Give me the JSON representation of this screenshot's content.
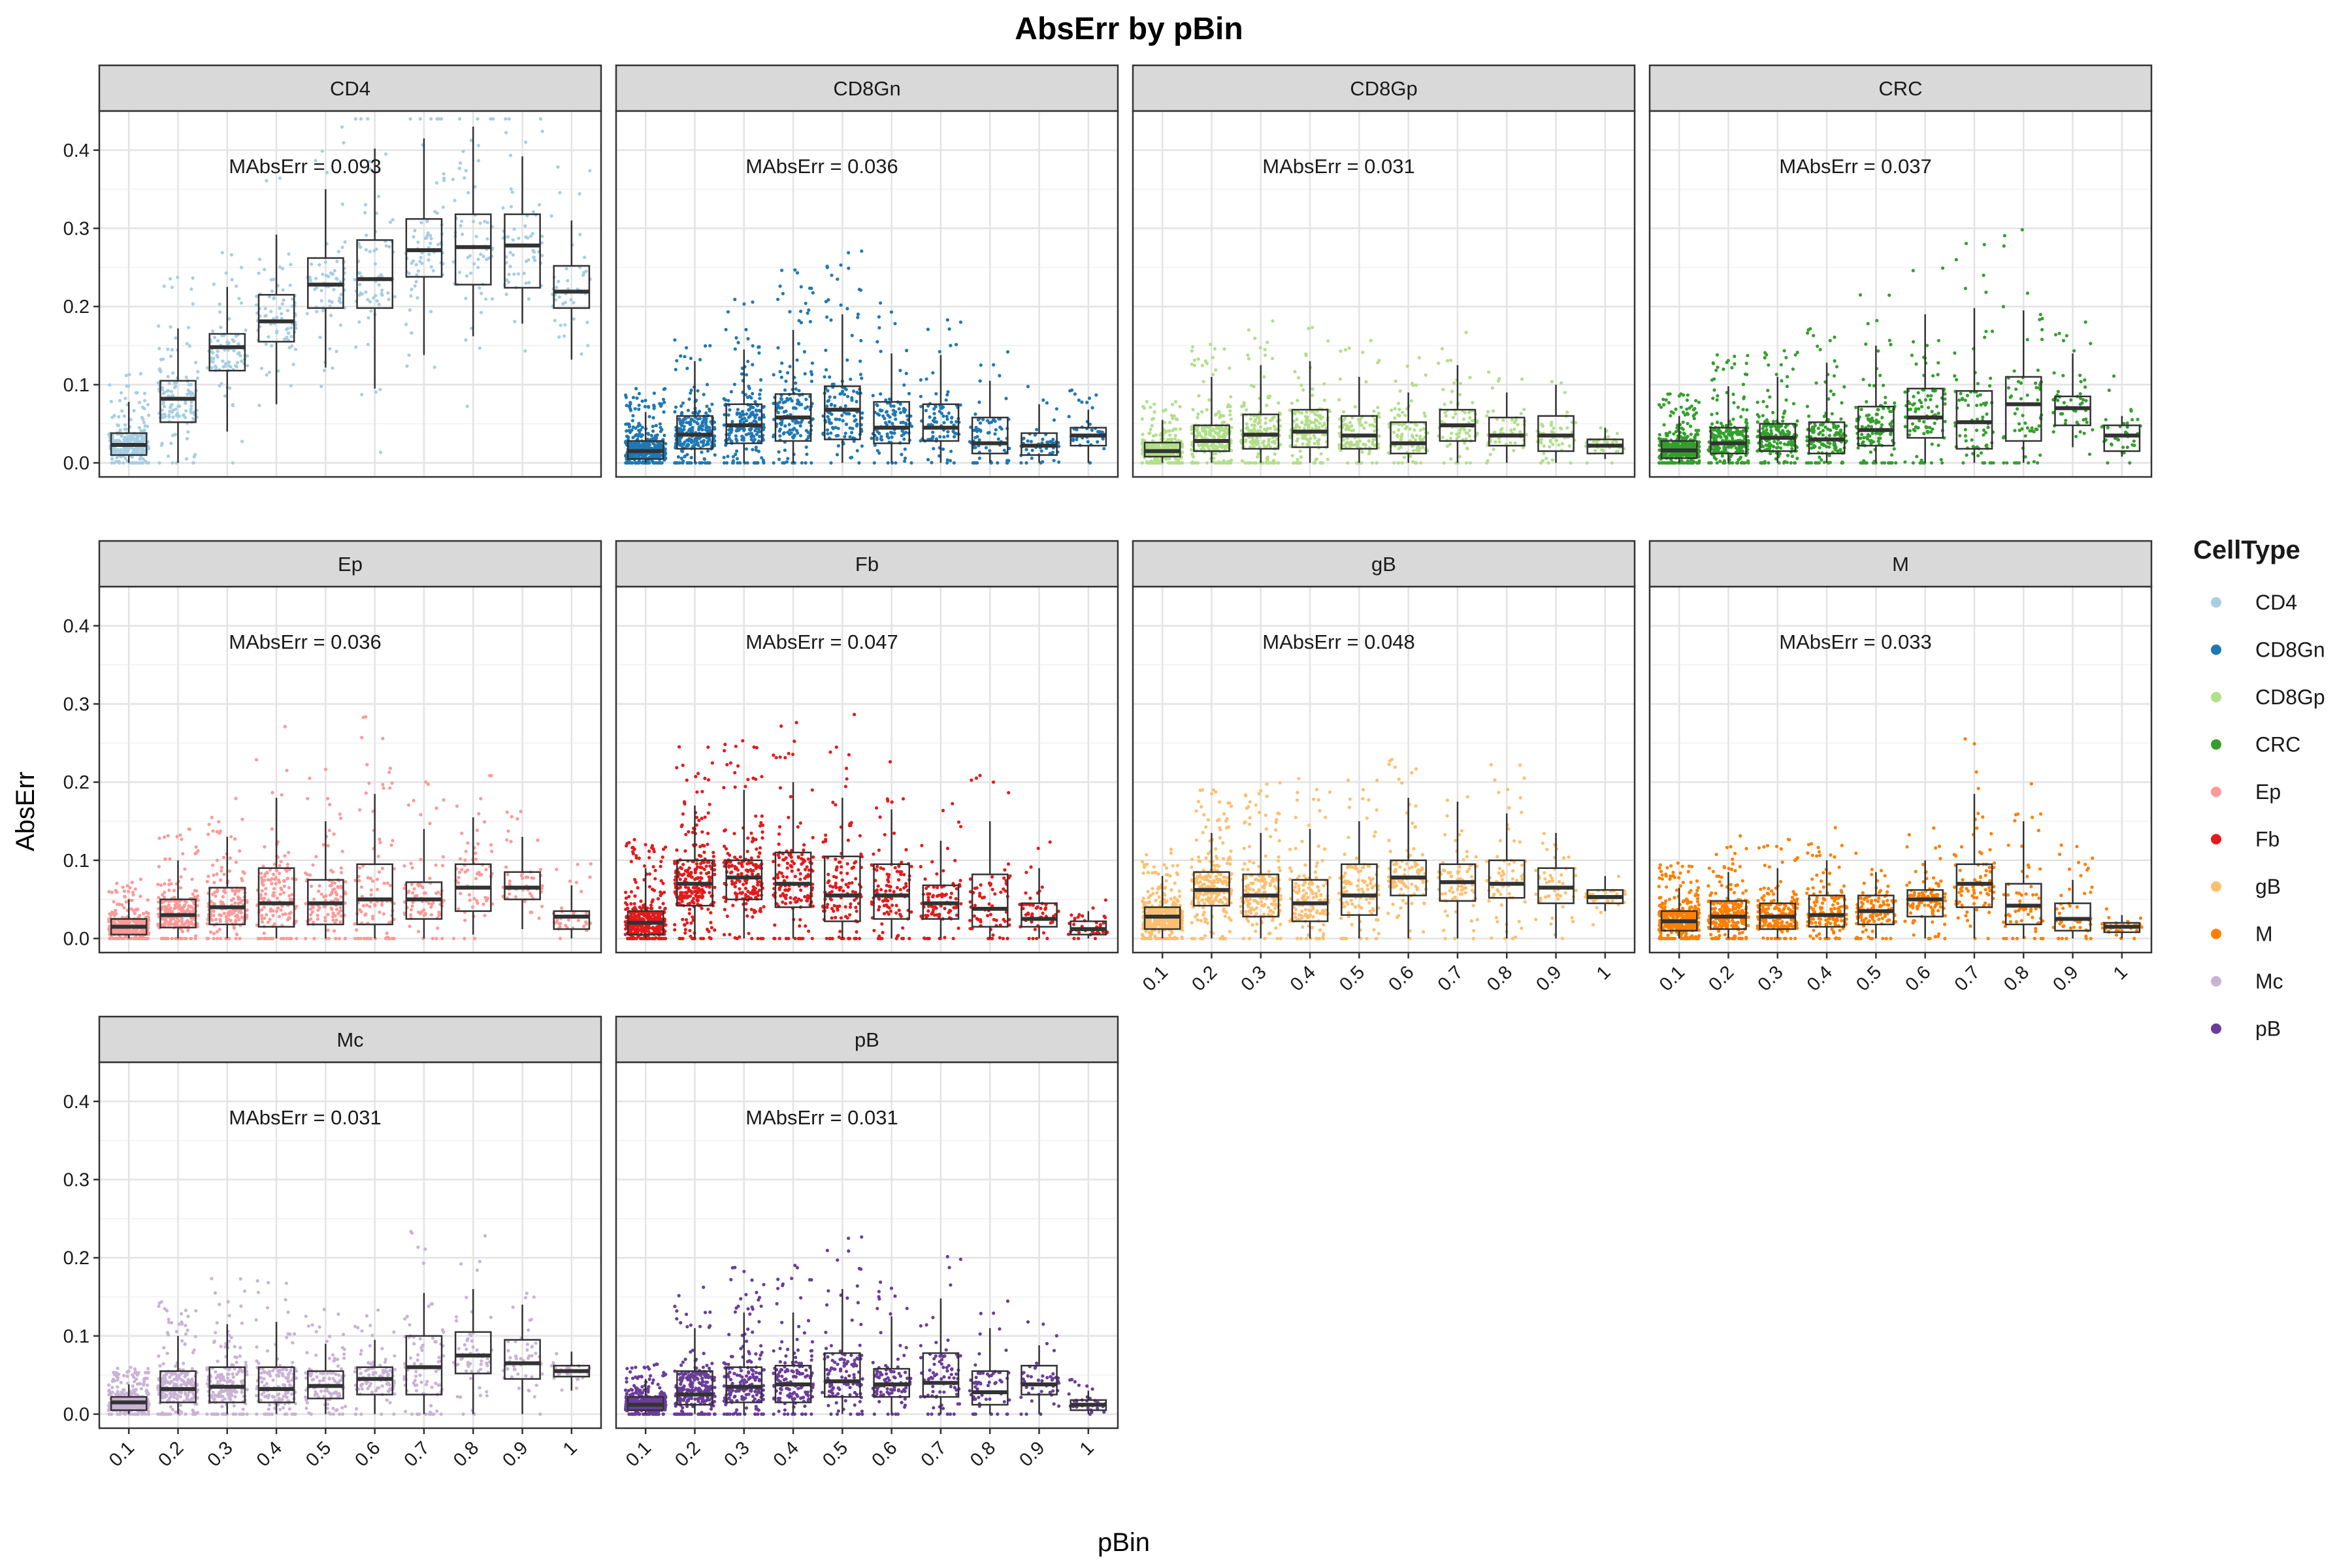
{
  "chart_data": {
    "type": "boxplot-jitter-facets",
    "title": "AbsErr by pBin",
    "xlabel": "pBin",
    "ylabel": "AbsErr",
    "x_categories": [
      "0.1",
      "0.2",
      "0.3",
      "0.4",
      "0.5",
      "0.6",
      "0.7",
      "0.8",
      "0.9",
      "1"
    ],
    "y_ticks": [
      0.0,
      0.1,
      0.2,
      0.3,
      0.4
    ],
    "y_tick_labels": [
      "0.0",
      "0.1",
      "0.2",
      "0.3",
      "0.4"
    ],
    "ylim": [
      -0.018,
      0.45
    ],
    "grid": true,
    "legend": {
      "title": "CellType",
      "placement": "right"
    },
    "facets": [
      {
        "name": "CD4",
        "color": "#a6cee3",
        "annotation": "MAbsErr = 0.093",
        "medians": [
          0.023,
          0.082,
          0.148,
          0.181,
          0.228,
          0.235,
          0.272,
          0.276,
          0.278,
          0.219
        ],
        "q1": [
          0.01,
          0.052,
          0.118,
          0.155,
          0.198,
          0.198,
          0.238,
          0.228,
          0.224,
          0.198
        ],
        "q3": [
          0.038,
          0.105,
          0.165,
          0.215,
          0.262,
          0.285,
          0.312,
          0.318,
          0.318,
          0.252
        ],
        "whisker_low": [
          0.0,
          0.0,
          0.04,
          0.075,
          0.122,
          0.095,
          0.138,
          0.162,
          0.178,
          0.132
        ],
        "whisker_high": [
          0.078,
          0.172,
          0.225,
          0.292,
          0.35,
          0.402,
          0.415,
          0.43,
          0.392,
          0.31
        ],
        "n_points": [
          260,
          130,
          90,
          80,
          70,
          70,
          70,
          65,
          60,
          45
        ]
      },
      {
        "name": "CD8Gn",
        "color": "#1f78b4",
        "annotation": "MAbsErr = 0.036",
        "medians": [
          0.015,
          0.036,
          0.048,
          0.058,
          0.068,
          0.045,
          0.045,
          0.025,
          0.022,
          0.035
        ],
        "q1": [
          0.005,
          0.018,
          0.025,
          0.028,
          0.03,
          0.025,
          0.028,
          0.012,
          0.01,
          0.022
        ],
        "q3": [
          0.028,
          0.06,
          0.075,
          0.088,
          0.098,
          0.078,
          0.075,
          0.058,
          0.038,
          0.045
        ],
        "whisker_low": [
          0.0,
          0.0,
          0.0,
          0.0,
          0.0,
          0.0,
          0.0,
          0.0,
          0.0,
          0.0
        ],
        "whisker_high": [
          0.065,
          0.13,
          0.145,
          0.17,
          0.19,
          0.14,
          0.138,
          0.105,
          0.075,
          0.068
        ],
        "n_points": [
          420,
          260,
          200,
          160,
          130,
          110,
          90,
          70,
          55,
          40
        ]
      },
      {
        "name": "CD8Gp",
        "color": "#b2df8a",
        "annotation": "MAbsErr = 0.031",
        "medians": [
          0.015,
          0.028,
          0.036,
          0.04,
          0.035,
          0.025,
          0.048,
          0.035,
          0.035,
          0.022
        ],
        "q1": [
          0.008,
          0.015,
          0.018,
          0.02,
          0.018,
          0.012,
          0.028,
          0.022,
          0.015,
          0.012
        ],
        "q3": [
          0.026,
          0.048,
          0.062,
          0.068,
          0.06,
          0.052,
          0.068,
          0.058,
          0.06,
          0.03
        ],
        "whisker_low": [
          0.0,
          0.0,
          0.0,
          0.0,
          0.0,
          0.0,
          0.0,
          0.0,
          0.0,
          0.005
        ],
        "whisker_high": [
          0.055,
          0.11,
          0.125,
          0.13,
          0.11,
          0.09,
          0.125,
          0.09,
          0.1,
          0.045
        ],
        "n_points": [
          380,
          240,
          180,
          150,
          120,
          100,
          80,
          60,
          50,
          35
        ]
      },
      {
        "name": "CRC",
        "color": "#33a02c",
        "annotation": "MAbsErr = 0.037",
        "medians": [
          0.016,
          0.025,
          0.032,
          0.03,
          0.042,
          0.058,
          0.052,
          0.075,
          0.07,
          0.035
        ],
        "q1": [
          0.006,
          0.012,
          0.015,
          0.012,
          0.022,
          0.032,
          0.018,
          0.028,
          0.048,
          0.015
        ],
        "q3": [
          0.028,
          0.045,
          0.05,
          0.052,
          0.072,
          0.095,
          0.092,
          0.11,
          0.085,
          0.048
        ],
        "whisker_low": [
          0.0,
          0.0,
          0.0,
          0.0,
          0.0,
          0.0,
          0.0,
          0.0,
          0.02,
          0.008
        ],
        "whisker_high": [
          0.06,
          0.098,
          0.11,
          0.128,
          0.15,
          0.19,
          0.198,
          0.195,
          0.14,
          0.06
        ],
        "n_points": [
          400,
          250,
          190,
          150,
          120,
          100,
          80,
          65,
          50,
          35
        ]
      },
      {
        "name": "Ep",
        "color": "#fb9a99",
        "annotation": "MAbsErr = 0.036",
        "medians": [
          0.015,
          0.03,
          0.04,
          0.045,
          0.045,
          0.05,
          0.05,
          0.065,
          0.065,
          0.028
        ],
        "q1": [
          0.005,
          0.014,
          0.018,
          0.015,
          0.018,
          0.018,
          0.025,
          0.035,
          0.05,
          0.012
        ],
        "q3": [
          0.025,
          0.05,
          0.065,
          0.09,
          0.075,
          0.095,
          0.072,
          0.095,
          0.085,
          0.035
        ],
        "whisker_low": [
          0.0,
          0.0,
          0.0,
          0.0,
          0.0,
          0.0,
          0.0,
          0.005,
          0.012,
          0.0
        ],
        "whisker_high": [
          0.05,
          0.1,
          0.13,
          0.18,
          0.15,
          0.185,
          0.14,
          0.155,
          0.13,
          0.068
        ],
        "n_points": [
          380,
          240,
          180,
          150,
          120,
          100,
          80,
          60,
          50,
          35
        ]
      },
      {
        "name": "Fb",
        "color": "#e31a1c",
        "annotation": "MAbsErr = 0.047",
        "medians": [
          0.02,
          0.07,
          0.078,
          0.07,
          0.055,
          0.055,
          0.045,
          0.038,
          0.025,
          0.012
        ],
        "q1": [
          0.005,
          0.042,
          0.05,
          0.04,
          0.022,
          0.025,
          0.025,
          0.015,
          0.015,
          0.005
        ],
        "q3": [
          0.035,
          0.1,
          0.1,
          0.11,
          0.105,
          0.095,
          0.068,
          0.082,
          0.045,
          0.022
        ],
        "whisker_low": [
          0.0,
          0.0,
          0.0,
          0.0,
          0.0,
          0.0,
          0.0,
          0.0,
          0.0,
          0.0
        ],
        "whisker_high": [
          0.09,
          0.17,
          0.19,
          0.2,
          0.18,
          0.165,
          0.125,
          0.15,
          0.09,
          0.035
        ],
        "n_points": [
          430,
          270,
          200,
          160,
          130,
          110,
          90,
          70,
          55,
          40
        ]
      },
      {
        "name": "gB",
        "color": "#fdbf6f",
        "annotation": "MAbsErr = 0.048",
        "medians": [
          0.028,
          0.062,
          0.055,
          0.045,
          0.055,
          0.078,
          0.072,
          0.07,
          0.065,
          0.053
        ],
        "q1": [
          0.012,
          0.042,
          0.028,
          0.022,
          0.03,
          0.055,
          0.048,
          0.052,
          0.045,
          0.045
        ],
        "q3": [
          0.04,
          0.085,
          0.082,
          0.075,
          0.095,
          0.1,
          0.095,
          0.1,
          0.09,
          0.062
        ],
        "whisker_low": [
          0.0,
          0.0,
          0.0,
          0.0,
          0.0,
          0.0,
          0.0,
          0.0,
          0.0,
          0.035
        ],
        "whisker_high": [
          0.08,
          0.135,
          0.135,
          0.14,
          0.15,
          0.18,
          0.175,
          0.16,
          0.135,
          0.08
        ],
        "n_points": [
          400,
          250,
          190,
          150,
          120,
          100,
          80,
          65,
          50,
          35
        ]
      },
      {
        "name": "M",
        "color": "#ff7f00",
        "annotation": "MAbsErr = 0.033",
        "medians": [
          0.022,
          0.028,
          0.028,
          0.03,
          0.035,
          0.05,
          0.07,
          0.042,
          0.025,
          0.015
        ],
        "q1": [
          0.01,
          0.012,
          0.012,
          0.015,
          0.018,
          0.028,
          0.04,
          0.018,
          0.01,
          0.008
        ],
        "q3": [
          0.035,
          0.048,
          0.045,
          0.055,
          0.055,
          0.062,
          0.095,
          0.07,
          0.045,
          0.02
        ],
        "whisker_low": [
          0.0,
          0.0,
          0.0,
          0.0,
          0.0,
          0.0,
          0.0,
          0.0,
          0.0,
          0.0
        ],
        "whisker_high": [
          0.065,
          0.085,
          0.09,
          0.1,
          0.085,
          0.1,
          0.185,
          0.15,
          0.075,
          0.03
        ],
        "n_points": [
          420,
          260,
          190,
          150,
          120,
          100,
          80,
          65,
          50,
          35
        ]
      },
      {
        "name": "Mc",
        "color": "#cab2d6",
        "annotation": "MAbsErr = 0.031",
        "medians": [
          0.015,
          0.032,
          0.035,
          0.032,
          0.036,
          0.045,
          0.06,
          0.075,
          0.065,
          0.055
        ],
        "q1": [
          0.005,
          0.015,
          0.015,
          0.015,
          0.02,
          0.025,
          0.025,
          0.052,
          0.045,
          0.048
        ],
        "q3": [
          0.022,
          0.055,
          0.06,
          0.06,
          0.055,
          0.06,
          0.1,
          0.105,
          0.095,
          0.062
        ],
        "whisker_low": [
          0.0,
          0.0,
          0.0,
          0.0,
          0.0,
          0.0,
          0.0,
          0.0,
          0.0,
          0.03
        ],
        "whisker_high": [
          0.038,
          0.1,
          0.115,
          0.118,
          0.09,
          0.095,
          0.155,
          0.16,
          0.14,
          0.08
        ],
        "n_points": [
          380,
          240,
          180,
          150,
          120,
          100,
          80,
          60,
          50,
          35
        ]
      },
      {
        "name": "pB",
        "color": "#6a3d9a",
        "annotation": "MAbsErr = 0.031",
        "medians": [
          0.012,
          0.025,
          0.035,
          0.038,
          0.042,
          0.038,
          0.04,
          0.028,
          0.038,
          0.012
        ],
        "q1": [
          0.005,
          0.012,
          0.015,
          0.015,
          0.022,
          0.022,
          0.022,
          0.012,
          0.025,
          0.005
        ],
        "q3": [
          0.022,
          0.055,
          0.06,
          0.062,
          0.078,
          0.058,
          0.078,
          0.055,
          0.062,
          0.018
        ],
        "whisker_low": [
          0.0,
          0.0,
          0.0,
          0.0,
          0.0,
          0.0,
          0.0,
          0.0,
          0.0,
          0.0
        ],
        "whisker_high": [
          0.045,
          0.11,
          0.13,
          0.13,
          0.16,
          0.125,
          0.148,
          0.11,
          0.088,
          0.03
        ],
        "n_points": [
          420,
          260,
          190,
          150,
          120,
          100,
          80,
          60,
          50,
          35
        ]
      }
    ]
  }
}
